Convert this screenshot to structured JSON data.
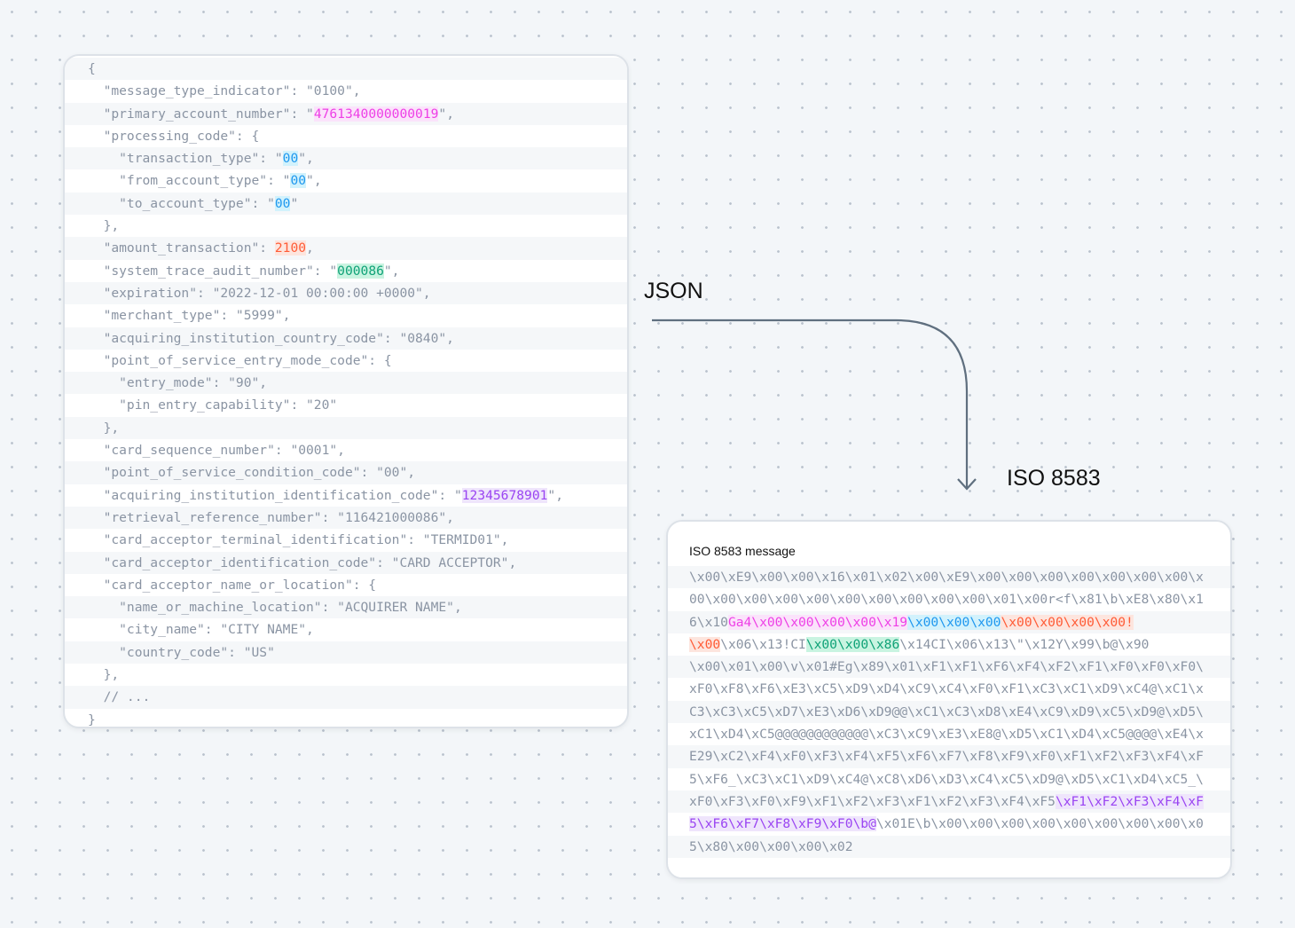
{
  "labels": {
    "json": "JSON",
    "iso": "ISO 8583"
  },
  "iso_card": {
    "title": "ISO 8583 message"
  },
  "colors": {
    "pink": "#ee3fe6",
    "blue": "#1f98ef",
    "orange": "#ff5b36",
    "green": "#0fa277",
    "purple": "#9a44f2",
    "arrow": "#5f6f7f"
  },
  "json_lines": [
    [
      {
        "t": "{"
      }
    ],
    [
      {
        "t": "  \"message_type_indicator\": \"0100\","
      }
    ],
    [
      {
        "t": "  \"primary_account_number\": \""
      },
      {
        "t": "4761340000000019",
        "c": "pink"
      },
      {
        "t": "\","
      }
    ],
    [
      {
        "t": "  \"processing_code\": {"
      }
    ],
    [
      {
        "t": "    \"transaction_type\": \""
      },
      {
        "t": "00",
        "c": "blue"
      },
      {
        "t": "\","
      }
    ],
    [
      {
        "t": "    \"from_account_type\": \""
      },
      {
        "t": "00",
        "c": "blue"
      },
      {
        "t": "\","
      }
    ],
    [
      {
        "t": "    \"to_account_type\": \""
      },
      {
        "t": "00",
        "c": "blue"
      },
      {
        "t": "\""
      }
    ],
    [
      {
        "t": "  },"
      }
    ],
    [
      {
        "t": "  \"amount_transaction\": "
      },
      {
        "t": "2100",
        "c": "orange"
      },
      {
        "t": ","
      }
    ],
    [
      {
        "t": "  \"system_trace_audit_number\": \""
      },
      {
        "t": "000086",
        "c": "green"
      },
      {
        "t": "\","
      }
    ],
    [
      {
        "t": "  \"expiration\": \"2022-12-01 00:00:00 +0000\","
      }
    ],
    [
      {
        "t": "  \"merchant_type\": \"5999\","
      }
    ],
    [
      {
        "t": "  \"acquiring_institution_country_code\": \"0840\","
      }
    ],
    [
      {
        "t": "  \"point_of_service_entry_mode_code\": {"
      }
    ],
    [
      {
        "t": "    \"entry_mode\": \"90\","
      }
    ],
    [
      {
        "t": "    \"pin_entry_capability\": \"20\""
      }
    ],
    [
      {
        "t": "  },"
      }
    ],
    [
      {
        "t": "  \"card_sequence_number\": \"0001\","
      }
    ],
    [
      {
        "t": "  \"point_of_service_condition_code\": \"00\","
      }
    ],
    [
      {
        "t": "  \"acquiring_institution_identification_code\": \""
      },
      {
        "t": "12345678901",
        "c": "purple"
      },
      {
        "t": "\","
      }
    ],
    [
      {
        "t": "  \"retrieval_reference_number\": \"116421000086\","
      }
    ],
    [
      {
        "t": "  \"card_acceptor_terminal_identification\": \"TERMID01\","
      }
    ],
    [
      {
        "t": "  \"card_acceptor_identification_code\": \"CARD ACCEPTOR\","
      }
    ],
    [
      {
        "t": "  \"card_acceptor_name_or_location\": {"
      }
    ],
    [
      {
        "t": "    \"name_or_machine_location\": \"ACQUIRER NAME\","
      }
    ],
    [
      {
        "t": "    \"city_name\": \"CITY NAME\","
      }
    ],
    [
      {
        "t": "    \"country_code\": \"US\""
      }
    ],
    [
      {
        "t": "  },"
      }
    ],
    [
      {
        "t": "  // ..."
      }
    ],
    [
      {
        "t": "}"
      }
    ]
  ],
  "iso_lines": [
    [
      {
        "t": "\\x00\\xE9\\x00\\x00\\x16\\x01\\x02\\x00\\xE9\\x00\\x00\\x00\\x00\\x00\\x00\\x00\\x"
      }
    ],
    [
      {
        "t": "00\\x00\\x00\\x00\\x00\\x00\\x00\\x00\\x00\\x00\\x01\\x00r<f\\x81\\b\\xE8\\x80\\x1"
      }
    ],
    [
      {
        "t": "6\\x10"
      },
      {
        "t": "Ga4\\x00\\x00\\x00\\x00\\x19",
        "c": "pink"
      },
      {
        "t": "\\x00\\x00\\x00",
        "c": "blue"
      },
      {
        "t": "\\x00\\x00\\x00\\x00!",
        "c": "orange"
      }
    ],
    [
      {
        "t": "\\x00",
        "c": "orange"
      },
      {
        "t": "\\x06\\x13!CI"
      },
      {
        "t": "\\x00\\x00\\x86",
        "c": "green"
      },
      {
        "t": "\\x14CI\\x06\\x13\\\"\\x12Y\\x99\\b@\\x90"
      }
    ],
    [
      {
        "t": "\\x00\\x01\\x00\\v\\x01#Eg\\x89\\x01\\xF1\\xF1\\xF6\\xF4\\xF2\\xF1\\xF0\\xF0\\xF0\\"
      }
    ],
    [
      {
        "t": "xF0\\xF8\\xF6\\xE3\\xC5\\xD9\\xD4\\xC9\\xC4\\xF0\\xF1\\xC3\\xC1\\xD9\\xC4@\\xC1\\x"
      }
    ],
    [
      {
        "t": "C3\\xC3\\xC5\\xD7\\xE3\\xD6\\xD9@@\\xC1\\xC3\\xD8\\xE4\\xC9\\xD9\\xC5\\xD9@\\xD5\\"
      }
    ],
    [
      {
        "t": "xC1\\xD4\\xC5@@@@@@@@@@@@\\xC3\\xC9\\xE3\\xE8@\\xD5\\xC1\\xD4\\xC5@@@@\\xE4\\x"
      }
    ],
    [
      {
        "t": "E29\\xC2\\xF4\\xF0\\xF3\\xF4\\xF5\\xF6\\xF7\\xF8\\xF9\\xF0\\xF1\\xF2\\xF3\\xF4\\xF"
      }
    ],
    [
      {
        "t": "5\\xF6_\\xC3\\xC1\\xD9\\xC4@\\xC8\\xD6\\xD3\\xC4\\xC5\\xD9@\\xD5\\xC1\\xD4\\xC5_\\"
      }
    ],
    [
      {
        "t": "xF0\\xF3\\xF0\\xF9\\xF1\\xF2\\xF3\\xF1\\xF2\\xF3\\xF4\\xF5"
      },
      {
        "t": "\\xF1\\xF2\\xF3\\xF4\\xF",
        "c": "purple"
      }
    ],
    [
      {
        "t": "5\\xF6\\xF7\\xF8\\xF9\\xF0\\b@",
        "c": "purple"
      },
      {
        "t": "\\x01E\\b\\x00\\x00\\x00\\x00\\x00\\x00\\x00\\x00\\x0"
      }
    ],
    [
      {
        "t": "5\\x80\\x00\\x00\\x00\\x02"
      }
    ]
  ]
}
